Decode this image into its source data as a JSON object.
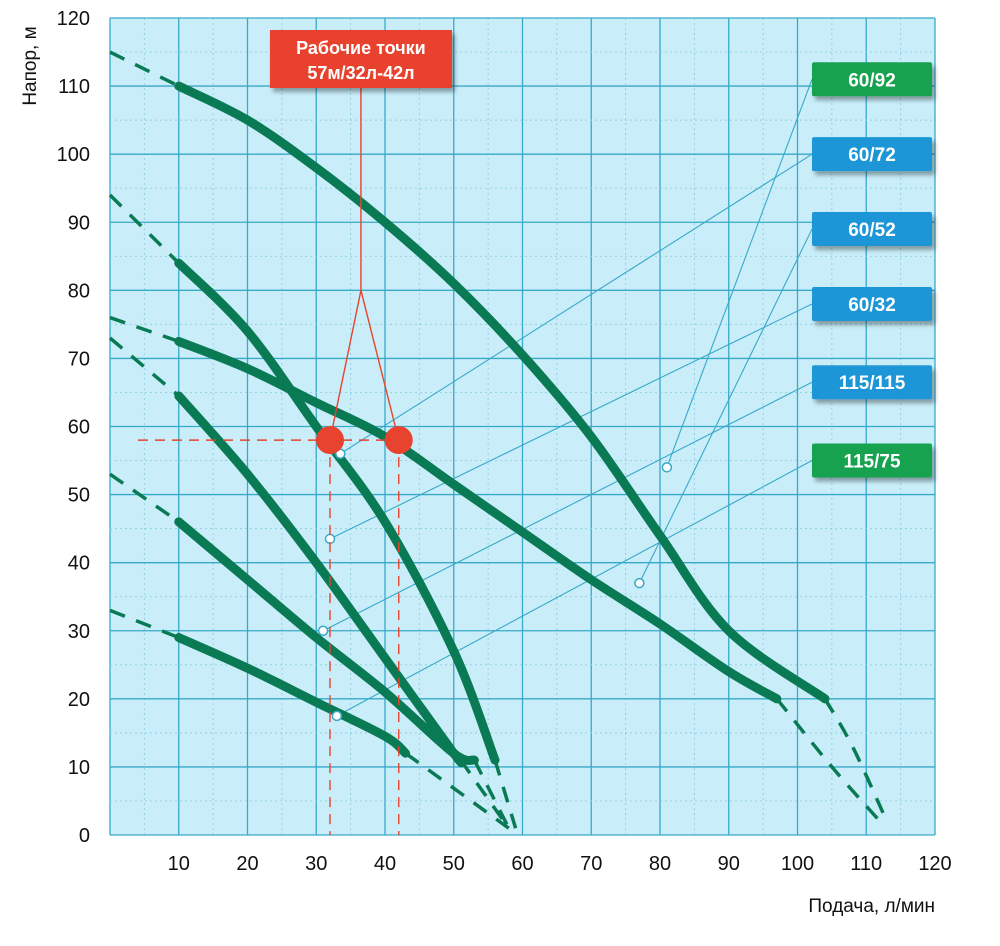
{
  "chart_data": {
    "type": "line",
    "xlabel": "Подача,  л/мин",
    "ylabel": "Напор,  м",
    "xlim": [
      0,
      120
    ],
    "ylim": [
      0,
      120
    ],
    "x_ticks": [
      10,
      20,
      30,
      40,
      50,
      60,
      70,
      80,
      90,
      100,
      110,
      120
    ],
    "y_ticks": [
      0,
      10,
      20,
      30,
      40,
      50,
      60,
      70,
      80,
      90,
      100,
      110,
      120
    ],
    "grid": true,
    "colors": {
      "curve": "#0a7a55",
      "grid": "#38a9c9",
      "grid_minor": "#8ecfe0",
      "background": "#c9eef9",
      "badge_blue": "#1e96d6",
      "badge_green": "#14a24f",
      "annotation": "#e8432e"
    },
    "series": [
      {
        "name": "60/92",
        "color": "badge_green",
        "solid": [
          [
            10,
            110
          ],
          [
            20,
            105
          ],
          [
            30,
            98
          ],
          [
            40,
            90
          ],
          [
            50,
            81
          ],
          [
            60,
            70.5
          ],
          [
            70,
            58.5
          ],
          [
            80,
            44
          ],
          [
            90,
            30
          ],
          [
            104,
            20
          ]
        ],
        "dashed": [
          [
            104,
            20
          ],
          [
            108,
            13
          ],
          [
            113,
            2
          ]
        ],
        "dashed_start": [
          [
            0,
            115
          ],
          [
            10,
            110
          ]
        ],
        "marker": [
          81,
          54
        ]
      },
      {
        "name": "60/72",
        "color": "badge_blue",
        "solid": [
          [
            10,
            84
          ],
          [
            20,
            74
          ],
          [
            30,
            60
          ],
          [
            40,
            46
          ],
          [
            50,
            27
          ],
          [
            56,
            11
          ]
        ],
        "dashed": [
          [
            56,
            11
          ],
          [
            59,
            1
          ]
        ],
        "dashed_start": [
          [
            0,
            94
          ],
          [
            10,
            84
          ]
        ],
        "marker": [
          33.5,
          56
        ]
      },
      {
        "name": "60/52",
        "color": "badge_blue",
        "solid": [
          [
            10,
            72.5
          ],
          [
            20,
            68.5
          ],
          [
            30,
            63.5
          ],
          [
            40,
            58.5
          ],
          [
            50,
            51.5
          ],
          [
            60,
            44.5
          ],
          [
            70,
            37.5
          ],
          [
            80,
            31
          ],
          [
            90,
            24
          ],
          [
            97,
            20
          ]
        ],
        "dashed": [
          [
            97,
            20
          ],
          [
            105,
            10
          ],
          [
            112,
            2
          ]
        ],
        "dashed_start": [
          [
            0,
            76
          ],
          [
            10,
            72.5
          ]
        ],
        "marker": [
          77,
          37
        ]
      },
      {
        "name": "60/32",
        "color": "badge_blue",
        "solid": [
          [
            10,
            64.5
          ],
          [
            20,
            53
          ],
          [
            30,
            40
          ],
          [
            40,
            26
          ],
          [
            50,
            12
          ],
          [
            51,
            11
          ]
        ],
        "dashed": [
          [
            51,
            11
          ],
          [
            58,
            1
          ]
        ],
        "dashed_start": [
          [
            0,
            73
          ],
          [
            10,
            64.5
          ]
        ],
        "marker": [
          32,
          43.5
        ]
      },
      {
        "name": "115/115",
        "color": "badge_blue",
        "solid": [
          [
            10,
            46
          ],
          [
            20,
            37.5
          ],
          [
            30,
            29
          ],
          [
            40,
            21
          ],
          [
            50,
            12
          ],
          [
            53,
            11
          ]
        ],
        "dashed": [
          [
            53,
            11
          ],
          [
            58,
            1
          ]
        ],
        "dashed_start": [
          [
            0,
            53
          ],
          [
            10,
            46
          ]
        ],
        "marker": [
          31,
          30
        ]
      },
      {
        "name": "115/75",
        "color": "badge_green",
        "solid": [
          [
            10,
            29
          ],
          [
            20,
            24.5
          ],
          [
            30,
            19.5
          ],
          [
            40,
            14.5
          ],
          [
            43,
            12
          ]
        ],
        "dashed": [
          [
            43,
            12
          ],
          [
            58,
            1
          ]
        ],
        "dashed_start": [
          [
            0,
            33
          ],
          [
            10,
            29
          ]
        ],
        "marker": [
          33,
          17.5
        ]
      }
    ],
    "badges": [
      {
        "label": "60/92",
        "color": "badge_green",
        "value": 111
      },
      {
        "label": "60/72",
        "color": "badge_blue",
        "value": 100
      },
      {
        "label": "60/52",
        "color": "badge_blue",
        "value": 89
      },
      {
        "label": "60/32",
        "color": "badge_blue",
        "value": 78
      },
      {
        "label": "115/115",
        "color": "badge_blue",
        "value": 66.5
      },
      {
        "label": "115/75",
        "color": "badge_green",
        "value": 55
      }
    ],
    "annotation": {
      "line1": "Рабочие точки",
      "line2": "57м/32л-42л",
      "head": 58,
      "flows": [
        32,
        42
      ],
      "apex": [
        36.5,
        80
      ]
    }
  }
}
